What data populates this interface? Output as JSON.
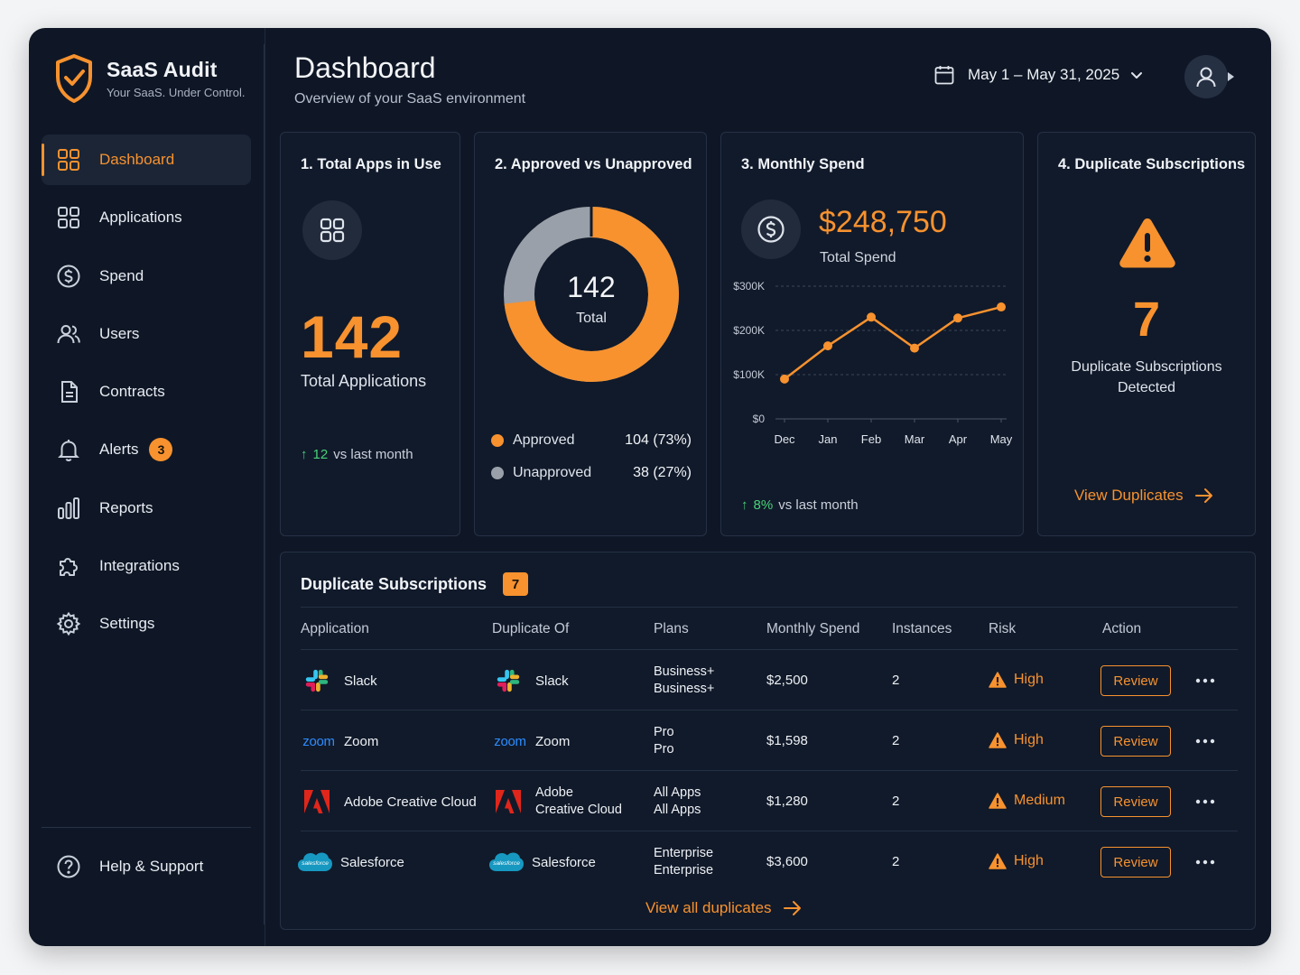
{
  "brand": {
    "name": "SaaS Audit",
    "tagline": "Your SaaS. Under Control."
  },
  "colors": {
    "accent": "#f7922f",
    "background": "#0f1726",
    "card": "#111a2a",
    "positive": "#49d17a",
    "muted_gray": "#9aa0a9"
  },
  "sidebar": {
    "items": [
      {
        "label": "Dashboard",
        "icon": "grid-icon",
        "active": true
      },
      {
        "label": "Applications",
        "icon": "apps-icon"
      },
      {
        "label": "Spend",
        "icon": "dollar-circle-icon"
      },
      {
        "label": "Users",
        "icon": "users-icon"
      },
      {
        "label": "Contracts",
        "icon": "document-icon"
      },
      {
        "label": "Alerts",
        "icon": "bell-icon",
        "badge": "3"
      },
      {
        "label": "Reports",
        "icon": "bar-chart-icon"
      },
      {
        "label": "Integrations",
        "icon": "puzzle-icon"
      },
      {
        "label": "Settings",
        "icon": "gear-icon"
      }
    ],
    "help": {
      "label": "Help & Support",
      "icon": "question-circle-icon"
    }
  },
  "header": {
    "title": "Dashboard",
    "subtitle": "Overview of your SaaS environment",
    "date_range": "May 1 – May 31, 2025"
  },
  "cards": {
    "total_apps": {
      "title": "1. Total Apps in Use",
      "value": "142",
      "label": "Total Applications",
      "trend_value": "12",
      "trend_text": "vs last month"
    },
    "approved": {
      "title": "2. Approved vs Unapproved",
      "center_value": "142",
      "center_label": "Total",
      "legend": [
        {
          "label": "Approved",
          "value": "104 (73%)",
          "color": "#f7922f"
        },
        {
          "label": "Unapproved",
          "value": "38 (27%)",
          "color": "#9aa0a9"
        }
      ]
    },
    "monthly_spend": {
      "title": "3. Monthly Spend",
      "value": "$248,750",
      "label": "Total Spend",
      "trend_value": "8%",
      "trend_text": "vs last month"
    },
    "duplicates": {
      "title": "4. Duplicate Subscriptions",
      "value": "7",
      "label_line1": "Duplicate Subscriptions",
      "label_line2": "Detected",
      "link": "View Duplicates"
    }
  },
  "chart_data": {
    "type": "line",
    "x": [
      "Dec",
      "Jan",
      "Feb",
      "Mar",
      "Apr",
      "May"
    ],
    "series": [
      {
        "values": [
          90000,
          165000,
          230000,
          160000,
          228000,
          253000
        ]
      }
    ],
    "y_ticks": [
      "$0",
      "$100K",
      "$200K",
      "$300K"
    ],
    "ylim": [
      0,
      300000
    ],
    "grid": true,
    "color": "#f7922f"
  },
  "table": {
    "title": "Duplicate Subscriptions",
    "count": "7",
    "headers": [
      "Application",
      "Duplicate Of",
      "Plans",
      "Monthly Spend",
      "Instances",
      "Risk",
      "Action"
    ],
    "rows": [
      {
        "app": "Slack",
        "app_logo": "slack-logo",
        "dup_line1": "Slack",
        "dup_line2": "",
        "plan1": "Business+",
        "plan2": "Business+",
        "spend": "$2,500",
        "instances": "2",
        "risk": "High",
        "action": "Review"
      },
      {
        "app": "Zoom",
        "app_logo": "zoom-logo",
        "dup_line1": "Zoom",
        "dup_line2": "",
        "plan1": "Pro",
        "plan2": "Pro",
        "spend": "$1,598",
        "instances": "2",
        "risk": "High",
        "action": "Review"
      },
      {
        "app": "Adobe Creative Cloud",
        "app_logo": "adobe-logo",
        "dup_line1": "Adobe",
        "dup_line2": "Creative Cloud",
        "plan1": "All Apps",
        "plan2": "All Apps",
        "spend": "$1,280",
        "instances": "2",
        "risk": "Medium",
        "action": "Review"
      },
      {
        "app": "Salesforce",
        "app_logo": "salesforce-logo",
        "dup_line1": "Salesforce",
        "dup_line2": "",
        "plan1": "Enterprise",
        "plan2": "Enterprise",
        "spend": "$3,600",
        "instances": "2",
        "risk": "High",
        "action": "Review"
      }
    ],
    "logo_text": {
      "zoom": "zoom",
      "salesforce": "salesforce"
    },
    "footer_link": "View all duplicates"
  }
}
